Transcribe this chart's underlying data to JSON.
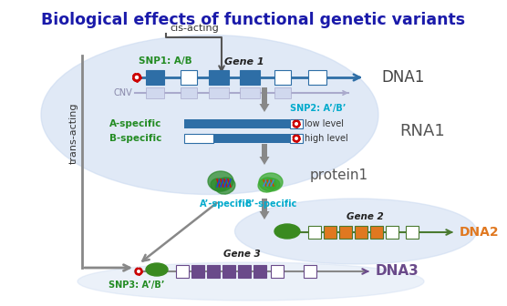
{
  "title": "Biological effects of functional genetic variants",
  "title_color": "#1a1aaa",
  "title_fontsize": 12.5,
  "bg_color": "#FFFFFF",
  "dna1_label": "DNA1",
  "dna2_label": "DNA2",
  "dna3_label": "DNA3",
  "rna1_label": "RNA1",
  "protein1_label": "protein1",
  "gene1_label": "Gene 1",
  "gene2_label": "Gene 2",
  "gene3_label": "Gene 3",
  "snp1_label": "SNP1: A/B",
  "snp2_label": "SNP2: A’/B’",
  "snp3_label": "SNP3: A’/B’",
  "cnv_label": "CNV",
  "cis_label": "cis-acting",
  "trans_label": "trans-acting",
  "a_specific_label": "A-specific",
  "b_specific_label": "B-specific",
  "a_prime_label": "A’-specific",
  "b_prime_label": "B’-specific",
  "low_level_label": "low level",
  "high_level_label": "high level",
  "dna_blue": "#2E6EA6",
  "dna2_green": "#4a7a30",
  "dna3_purple": "#6a4a8a",
  "snp_color": "#CC0000",
  "snp_text_green": "#228B22",
  "snp2_text_cyan": "#00AACC",
  "label_cyan": "#00AACC",
  "orange_color": "#E07820",
  "blob_color": "#C8D8F0",
  "green_oval_color": "#3a8a20"
}
